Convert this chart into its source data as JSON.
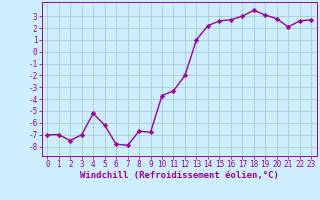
{
  "x": [
    0,
    1,
    2,
    3,
    4,
    5,
    6,
    7,
    8,
    9,
    10,
    11,
    12,
    13,
    14,
    15,
    16,
    17,
    18,
    19,
    20,
    21,
    22,
    23
  ],
  "y": [
    -7,
    -7,
    -7.5,
    -7,
    -5.2,
    -6.2,
    -7.8,
    -7.9,
    -6.7,
    -6.8,
    -3.7,
    -3.3,
    -2.0,
    1.0,
    2.2,
    2.6,
    2.7,
    3.0,
    3.5,
    3.1,
    2.8,
    2.1,
    2.6,
    2.7
  ],
  "line_color": "#990099",
  "marker": "D",
  "marker_size": 2.2,
  "bg_color": "#cceeff",
  "grid_color": "#aacccc",
  "xlabel": "Windchill (Refroidissement éolien,°C)",
  "xlim": [
    -0.5,
    23.5
  ],
  "ylim": [
    -8.8,
    4.2
  ],
  "yticks": [
    3,
    2,
    1,
    0,
    -1,
    -2,
    -3,
    -4,
    -5,
    -6,
    -7,
    -8
  ],
  "xticks": [
    0,
    1,
    2,
    3,
    4,
    5,
    6,
    7,
    8,
    9,
    10,
    11,
    12,
    13,
    14,
    15,
    16,
    17,
    18,
    19,
    20,
    21,
    22,
    23
  ],
  "xlabel_fontsize": 6.5,
  "tick_fontsize": 5.5,
  "line_width": 1.0
}
